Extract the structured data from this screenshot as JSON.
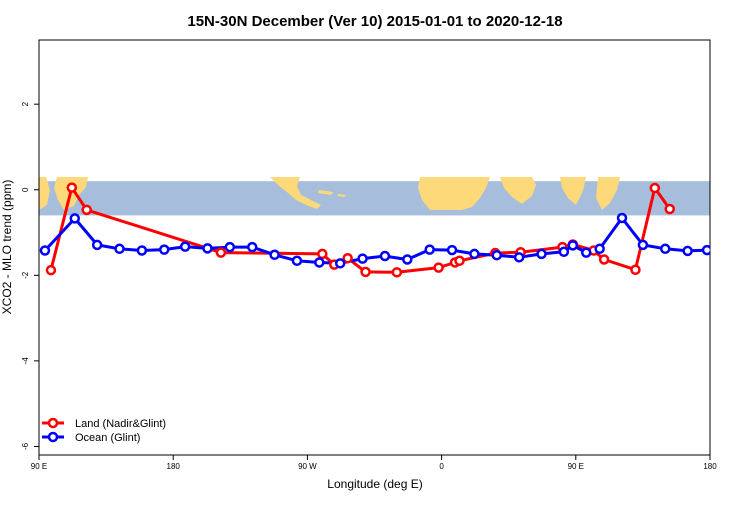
{
  "chart_data": {
    "type": "line",
    "title": "15N-30N December (Ver 10)   2015-01-01 to 2020-12-18",
    "xlabel": "Longitude (deg E)",
    "ylabel": "XCO2 - MLO trend (ppm)",
    "xlim": [
      90,
      540
    ],
    "ylim": [
      -6.2,
      3.5
    ],
    "x_ticks": [
      {
        "value": 90,
        "label": "90 E"
      },
      {
        "value": 180,
        "label": "180"
      },
      {
        "value": 270,
        "label": "90 W"
      },
      {
        "value": 360,
        "label": "0"
      },
      {
        "value": 450,
        "label": "90 E"
      },
      {
        "value": 540,
        "label": "180"
      }
    ],
    "y_ticks": [
      {
        "value": -6,
        "label": "-6"
      },
      {
        "value": -4,
        "label": "-4"
      },
      {
        "value": -2,
        "label": "-2"
      },
      {
        "value": 0,
        "label": "0"
      },
      {
        "value": 2,
        "label": "2"
      }
    ],
    "map_band": {
      "y_top": 0.2,
      "y_bottom": -0.6,
      "ocean_color": "#a6bddb",
      "land_color": "#fdd97a"
    },
    "legend_position": "bottom-left",
    "series": [
      {
        "name": "Land (Nadir&Glint)",
        "color": "#ff0000",
        "x": [
          98,
          112,
          122,
          212,
          280,
          288,
          297,
          309,
          330,
          358,
          369,
          372,
          396,
          413,
          441,
          448,
          462,
          469,
          490,
          503,
          513
        ],
        "y": [
          -1.88,
          0.05,
          -0.47,
          -1.47,
          -1.5,
          -1.75,
          -1.6,
          -1.92,
          -1.93,
          -1.82,
          -1.7,
          -1.66,
          -1.48,
          -1.46,
          -1.34,
          -1.28,
          -1.42,
          -1.63,
          -1.87,
          0.04,
          -0.45
        ]
      },
      {
        "name": "Ocean (Glint)",
        "color": "#0000ff",
        "x": [
          94,
          114,
          129,
          144,
          159,
          174,
          188,
          203,
          218,
          233,
          248,
          263,
          278,
          292,
          307,
          322,
          337,
          352,
          367,
          382,
          397,
          412,
          427,
          442,
          448,
          457,
          466,
          481,
          495,
          510,
          525,
          538
        ],
        "y": [
          -1.42,
          -0.67,
          -1.29,
          -1.38,
          -1.42,
          -1.4,
          -1.33,
          -1.37,
          -1.34,
          -1.34,
          -1.52,
          -1.66,
          -1.7,
          -1.72,
          -1.61,
          -1.55,
          -1.63,
          -1.4,
          -1.41,
          -1.5,
          -1.53,
          -1.58,
          -1.5,
          -1.45,
          -1.3,
          -1.47,
          -1.38,
          -0.66,
          -1.29,
          -1.38,
          -1.43,
          -1.41
        ]
      }
    ]
  }
}
